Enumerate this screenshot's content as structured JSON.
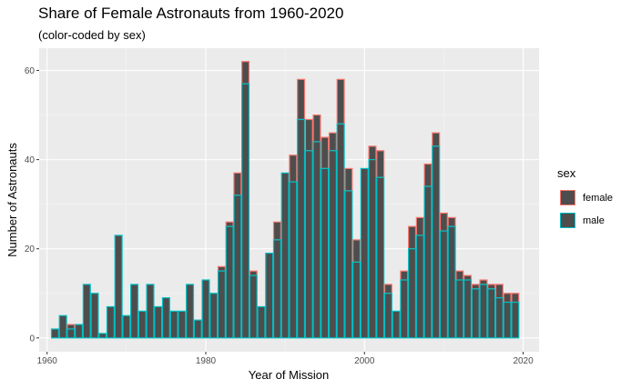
{
  "chart_data": {
    "type": "bar",
    "stacked": true,
    "title": "Share of Female Astronauts from 1960-2020",
    "subtitle": "(color-coded by sex)",
    "xlabel": "Year of Mission",
    "ylabel": "Number of Astronauts",
    "xlim": [
      1959,
      2022
    ],
    "ylim": [
      -3.1,
      65
    ],
    "x_ticks": [
      1960,
      1980,
      2000,
      2020
    ],
    "y_ticks": [
      0,
      20,
      40,
      60
    ],
    "grid": true,
    "legend": {
      "title": "sex",
      "position": "right"
    },
    "fill_color": "#4d4d4d",
    "series": [
      {
        "name": "male",
        "color": "#00bfc4",
        "x": [
          1961,
          1962,
          1963,
          1964,
          1965,
          1966,
          1967,
          1968,
          1969,
          1970,
          1971,
          1972,
          1973,
          1974,
          1975,
          1976,
          1977,
          1978,
          1979,
          1980,
          1981,
          1982,
          1983,
          1984,
          1985,
          1986,
          1987,
          1988,
          1989,
          1990,
          1991,
          1992,
          1993,
          1994,
          1995,
          1996,
          1997,
          1998,
          1999,
          2000,
          2001,
          2002,
          2003,
          2004,
          2005,
          2006,
          2007,
          2008,
          2009,
          2010,
          2011,
          2012,
          2013,
          2014,
          2015,
          2016,
          2017,
          2018,
          2019
        ],
        "values": [
          2,
          5,
          2,
          3,
          12,
          10,
          1,
          7,
          23,
          5,
          12,
          6,
          12,
          7,
          9,
          6,
          6,
          12,
          4,
          13,
          10,
          15,
          25,
          32,
          57,
          14,
          7,
          19,
          22,
          37,
          35,
          49,
          42,
          44,
          38,
          42,
          48,
          33,
          17,
          38,
          40,
          36,
          10,
          6,
          13,
          20,
          23,
          34,
          43,
          24,
          25,
          13,
          13,
          11,
          12,
          11,
          9,
          8,
          8
        ]
      },
      {
        "name": "female",
        "color": "#f8766d",
        "x": [
          1961,
          1962,
          1963,
          1964,
          1965,
          1966,
          1967,
          1968,
          1969,
          1970,
          1971,
          1972,
          1973,
          1974,
          1975,
          1976,
          1977,
          1978,
          1979,
          1980,
          1981,
          1982,
          1983,
          1984,
          1985,
          1986,
          1987,
          1988,
          1989,
          1990,
          1991,
          1992,
          1993,
          1994,
          1995,
          1996,
          1997,
          1998,
          1999,
          2000,
          2001,
          2002,
          2003,
          2004,
          2005,
          2006,
          2007,
          2008,
          2009,
          2010,
          2011,
          2012,
          2013,
          2014,
          2015,
          2016,
          2017,
          2018,
          2019
        ],
        "values": [
          0,
          0,
          1,
          0,
          0,
          0,
          0,
          0,
          0,
          0,
          0,
          0,
          0,
          0,
          0,
          0,
          0,
          0,
          0,
          0,
          0,
          1,
          1,
          5,
          5,
          1,
          0,
          0,
          4,
          0,
          6,
          9,
          7,
          6,
          7,
          4,
          10,
          5,
          5,
          0,
          3,
          6,
          2,
          0,
          2,
          5,
          4,
          5,
          3,
          4,
          2,
          2,
          1,
          1,
          1,
          1,
          3,
          2,
          2
        ]
      }
    ]
  }
}
